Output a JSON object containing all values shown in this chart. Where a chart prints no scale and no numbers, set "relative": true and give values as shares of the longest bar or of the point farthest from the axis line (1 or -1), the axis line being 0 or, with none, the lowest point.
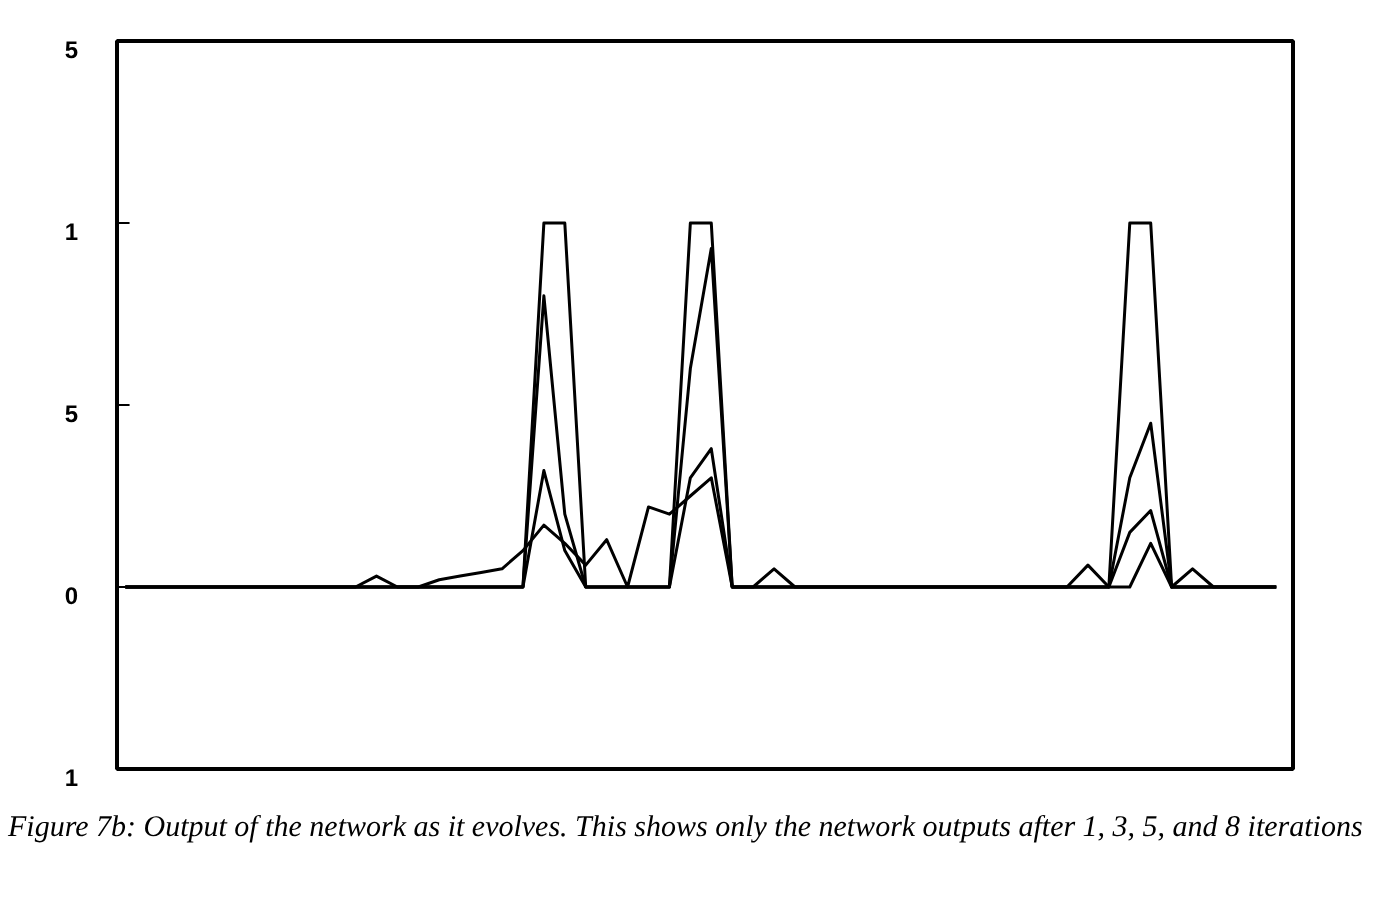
{
  "chart_data": {
    "type": "line",
    "categories": [
      null,
      null,
      null,
      null,
      null,
      null,
      null,
      null,
      null,
      null,
      null,
      null,
      null,
      null,
      null,
      null,
      null,
      null,
      null,
      null,
      null,
      null,
      null,
      null,
      null,
      null,
      null,
      null,
      null,
      null,
      null,
      null,
      null,
      null,
      null,
      null,
      null,
      null,
      null,
      null,
      null,
      null,
      null,
      null,
      null,
      null,
      null,
      null,
      null,
      null,
      null,
      null,
      null,
      null,
      null,
      null
    ],
    "series": [
      {
        "color": "#000000",
        "values": [
          0,
          0,
          0,
          0,
          0,
          0,
          0,
          0,
          0,
          0,
          0,
          0,
          0,
          0,
          0,
          0,
          0,
          0,
          0,
          0,
          1,
          1,
          0,
          0,
          0,
          0,
          0,
          1,
          1,
          0,
          0,
          0,
          0,
          0,
          0,
          0,
          0,
          0,
          0,
          0,
          0,
          0,
          0,
          0,
          0,
          0,
          0,
          0,
          1,
          1,
          0,
          0,
          0,
          0,
          0,
          0
        ]
      },
      {
        "color": "#000000",
        "values": [
          0,
          0,
          0,
          0,
          0,
          0,
          0,
          0,
          0,
          0,
          0,
          0,
          0,
          0,
          0,
          0,
          0,
          0,
          0,
          0,
          0.8,
          0.2,
          0,
          0,
          0,
          0,
          0,
          0.6,
          0.93,
          0,
          0,
          0,
          0,
          0,
          0,
          0,
          0,
          0,
          0,
          0,
          0,
          0,
          0,
          0,
          0,
          0,
          0,
          0,
          0.3,
          0.45,
          0,
          0,
          0,
          0,
          0,
          0
        ]
      },
      {
        "color": "#000000",
        "values": [
          0,
          0,
          0,
          0,
          0,
          0,
          0,
          0,
          0,
          0,
          0,
          0,
          0,
          0,
          0,
          0,
          0,
          0,
          0,
          0,
          0.32,
          0.1,
          0,
          0,
          0,
          0,
          0,
          0.3,
          0.38,
          0,
          0,
          0,
          0,
          0,
          0,
          0,
          0,
          0,
          0,
          0,
          0,
          0,
          0,
          0,
          0,
          0,
          0,
          0,
          0.15,
          0.21,
          0,
          0,
          0,
          0,
          0,
          0
        ]
      },
      {
        "color": "#000000",
        "values": [
          0,
          0,
          0,
          0,
          0,
          0,
          0,
          0,
          0,
          0,
          0,
          0,
          0.03,
          0,
          0,
          0.02,
          0.03,
          0.04,
          0.05,
          0.1,
          0.17,
          0.12,
          0.06,
          0.13,
          0,
          0.22,
          0.2,
          0.25,
          0.3,
          0,
          0,
          0.05,
          0,
          0,
          0,
          0,
          0,
          0,
          0,
          0,
          0,
          0,
          0,
          0,
          0,
          0,
          0.06,
          0,
          0,
          0.12,
          0,
          0.05,
          0,
          0,
          0,
          0
        ]
      }
    ],
    "relative": true,
    "grid": false,
    "marker": "none",
    "line_style": "solid",
    "annotations": [
      "5",
      "1",
      "5",
      "0",
      "1",
      "Figure 7b: Output of the network as it evolves. This shows only the network outputs after 1, 3, 5, and 8 iterations"
    ]
  }
}
